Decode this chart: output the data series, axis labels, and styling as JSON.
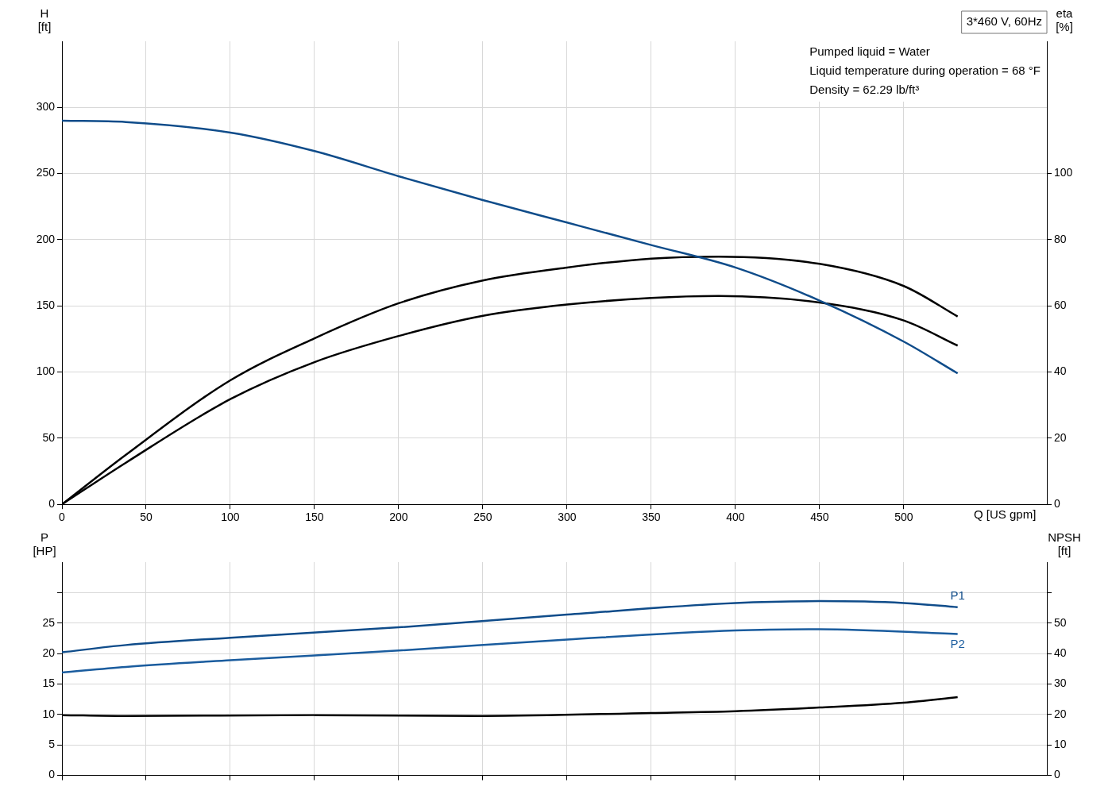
{
  "chart_data": [
    {
      "type": "line",
      "xlabel": "Q [US gpm]",
      "ylabel": "H [ft]",
      "y2label": "eta [%]",
      "xlim": [
        0,
        585
      ],
      "xticks": [
        0,
        50,
        100,
        150,
        200,
        250,
        300,
        350,
        400,
        450,
        500
      ],
      "ylim": [
        0,
        350
      ],
      "yticks": [
        0,
        50,
        100,
        150,
        200,
        250,
        300
      ],
      "y2lim": [
        0,
        140
      ],
      "y2ticks": [
        0,
        20,
        40,
        60,
        80,
        100
      ],
      "grid": true,
      "annotations": [
        "3*460 V, 60Hz",
        "Pumped liquid = Water",
        "Liquid temperature during operation = 68 °F",
        "Density = 62.29 lb/ft³"
      ],
      "series": [
        {
          "color": "#0f4c8a",
          "x": [
            0,
            38,
            100,
            150,
            200,
            250,
            300,
            350,
            400,
            450,
            500,
            532
          ],
          "values": [
            290,
            289,
            281,
            267,
            248,
            230,
            213,
            196,
            179,
            154,
            123,
            99
          ]
        },
        {
          "color": "#000000",
          "axis": "y2",
          "x": [
            0,
            38,
            100,
            150,
            200,
            250,
            300,
            350,
            390,
            450,
            500,
            532
          ],
          "values": [
            0,
            15,
            37.5,
            50.2,
            60.8,
            67.7,
            71.6,
            74.3,
            74.9,
            72.7,
            66,
            56.8
          ]
        },
        {
          "color": "#000000",
          "axis": "y2",
          "x": [
            0,
            38,
            100,
            150,
            200,
            250,
            300,
            350,
            390,
            450,
            500,
            532
          ],
          "values": [
            0,
            12.6,
            31.8,
            43,
            50.9,
            57,
            60.4,
            62.4,
            63,
            61,
            55.6,
            48
          ]
        }
      ]
    },
    {
      "type": "line",
      "ylabel": "P [HP]",
      "y2label": "NPSH [ft]",
      "xlim": [
        0,
        585
      ],
      "xticks": [
        0,
        50,
        100,
        150,
        200,
        250,
        300,
        350,
        400,
        450,
        500
      ],
      "ylim": [
        0,
        35
      ],
      "yticks": [
        0,
        5,
        10,
        15,
        20,
        25,
        {
          "value": 30,
          "label": null
        }
      ],
      "y2lim": [
        0,
        70
      ],
      "y2ticks": [
        0,
        10,
        20,
        30,
        40,
        50,
        {
          "value": 60,
          "label": null
        }
      ],
      "grid": true,
      "tick_labels": "y",
      "series": [
        {
          "name": "P1",
          "color": "#0f4c8a",
          "x": [
            0,
            38,
            100,
            200,
            300,
            400,
            450,
            500,
            532
          ],
          "values": [
            20.2,
            21.4,
            22.6,
            24.3,
            26.4,
            28.3,
            28.6,
            28.3,
            27.6
          ]
        },
        {
          "name": "P2",
          "color": "#1a5c9e",
          "x": [
            0,
            38,
            100,
            200,
            300,
            400,
            450,
            532
          ],
          "values": [
            16.9,
            17.8,
            18.9,
            20.5,
            22.3,
            23.8,
            24,
            23.2
          ]
        },
        {
          "color": "#000000",
          "axis": "y2",
          "x": [
            0,
            38,
            150,
            250,
            350,
            400,
            450,
            500,
            532
          ],
          "values": [
            19.8,
            19.5,
            19.8,
            19.5,
            20.5,
            21.1,
            22.3,
            23.9,
            25.7
          ]
        }
      ]
    }
  ]
}
